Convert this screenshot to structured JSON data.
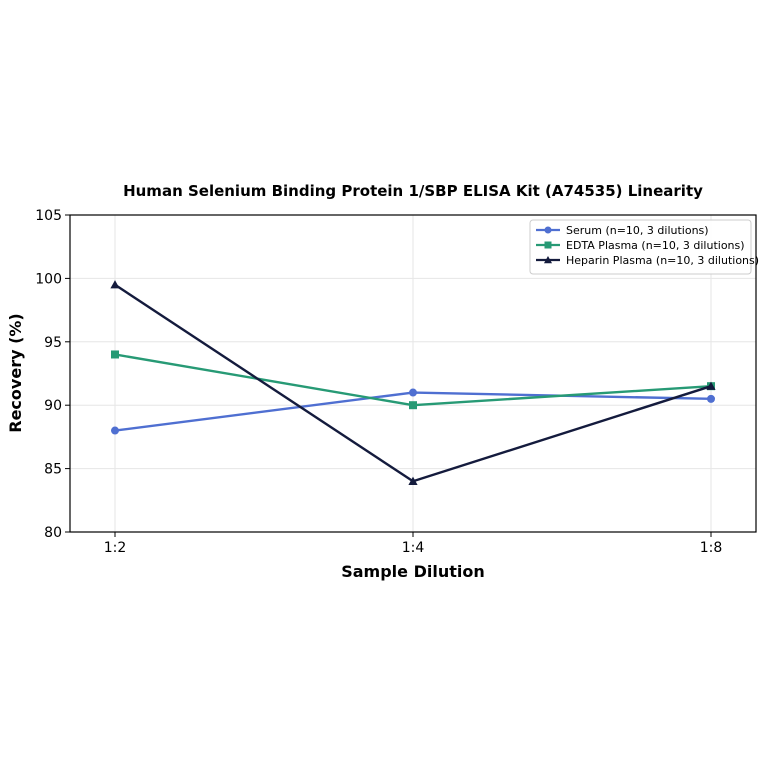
{
  "chart_data": {
    "type": "line",
    "title": "Human Selenium Binding Protein 1/SBP ELISA Kit (A74535) Linearity",
    "xlabel": "Sample Dilution",
    "ylabel": "Recovery (%)",
    "categories": [
      "1:2",
      "1:4",
      "1:8"
    ],
    "ylim": [
      80,
      105
    ],
    "yticks": [
      80,
      85,
      90,
      95,
      100,
      105
    ],
    "grid": true,
    "legend_position": "top-right",
    "series": [
      {
        "name": "Serum (n=10, 3 dilutions)",
        "values": [
          88.0,
          91.0,
          90.5
        ],
        "color": "#4f6fd1",
        "marker": "circle"
      },
      {
        "name": "EDTA Plasma (n=10, 3 dilutions)",
        "values": [
          94.0,
          90.0,
          91.5
        ],
        "color": "#279a75",
        "marker": "square"
      },
      {
        "name": "Heparin Plasma (n=10, 3 dilutions)",
        "values": [
          99.5,
          84.0,
          91.5
        ],
        "color": "#141b3d",
        "marker": "triangle"
      }
    ]
  }
}
